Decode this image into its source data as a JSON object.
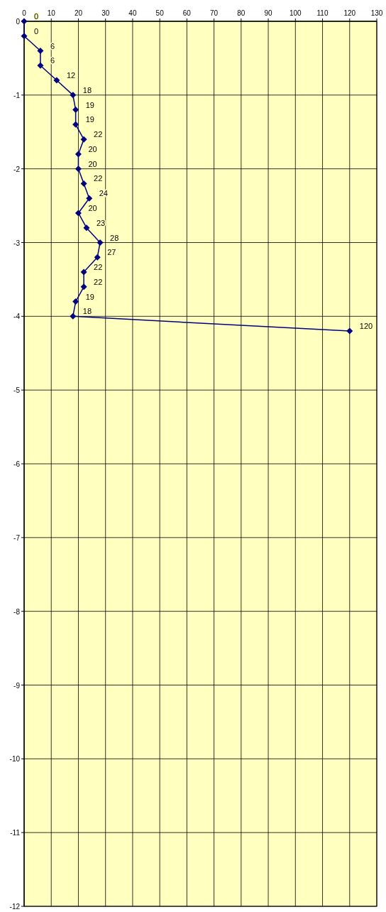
{
  "chart_data": {
    "type": "line",
    "orientation": "horizontal",
    "data_labels": true,
    "xlim": [
      0,
      130
    ],
    "xticks": [
      0,
      10,
      20,
      30,
      40,
      50,
      60,
      70,
      80,
      90,
      100,
      110,
      120,
      130
    ],
    "ylim": [
      -12,
      0
    ],
    "yticks": [
      0,
      -1,
      -2,
      -3,
      -4,
      -5,
      -6,
      -7,
      -8,
      -9,
      -10,
      -11,
      -12
    ],
    "grid": true,
    "marker": "diamond",
    "line_style": "solid",
    "series": [
      {
        "color": "#000080",
        "x": [
          0,
          -0.2,
          -0.4,
          -0.6,
          -0.8,
          -1,
          -1.2,
          -1.4,
          -1.6,
          -1.8,
          -2,
          -2.2,
          -2.4,
          -2.6,
          -2.8,
          -3,
          -3.2,
          -3.4,
          -3.6,
          -3.8,
          -4,
          -4.2
        ],
        "values": [
          0,
          0,
          6,
          6,
          12,
          18,
          19,
          19,
          22,
          20,
          20,
          22,
          24,
          20,
          23,
          28,
          27,
          22,
          22,
          19,
          18,
          120
        ]
      }
    ]
  }
}
